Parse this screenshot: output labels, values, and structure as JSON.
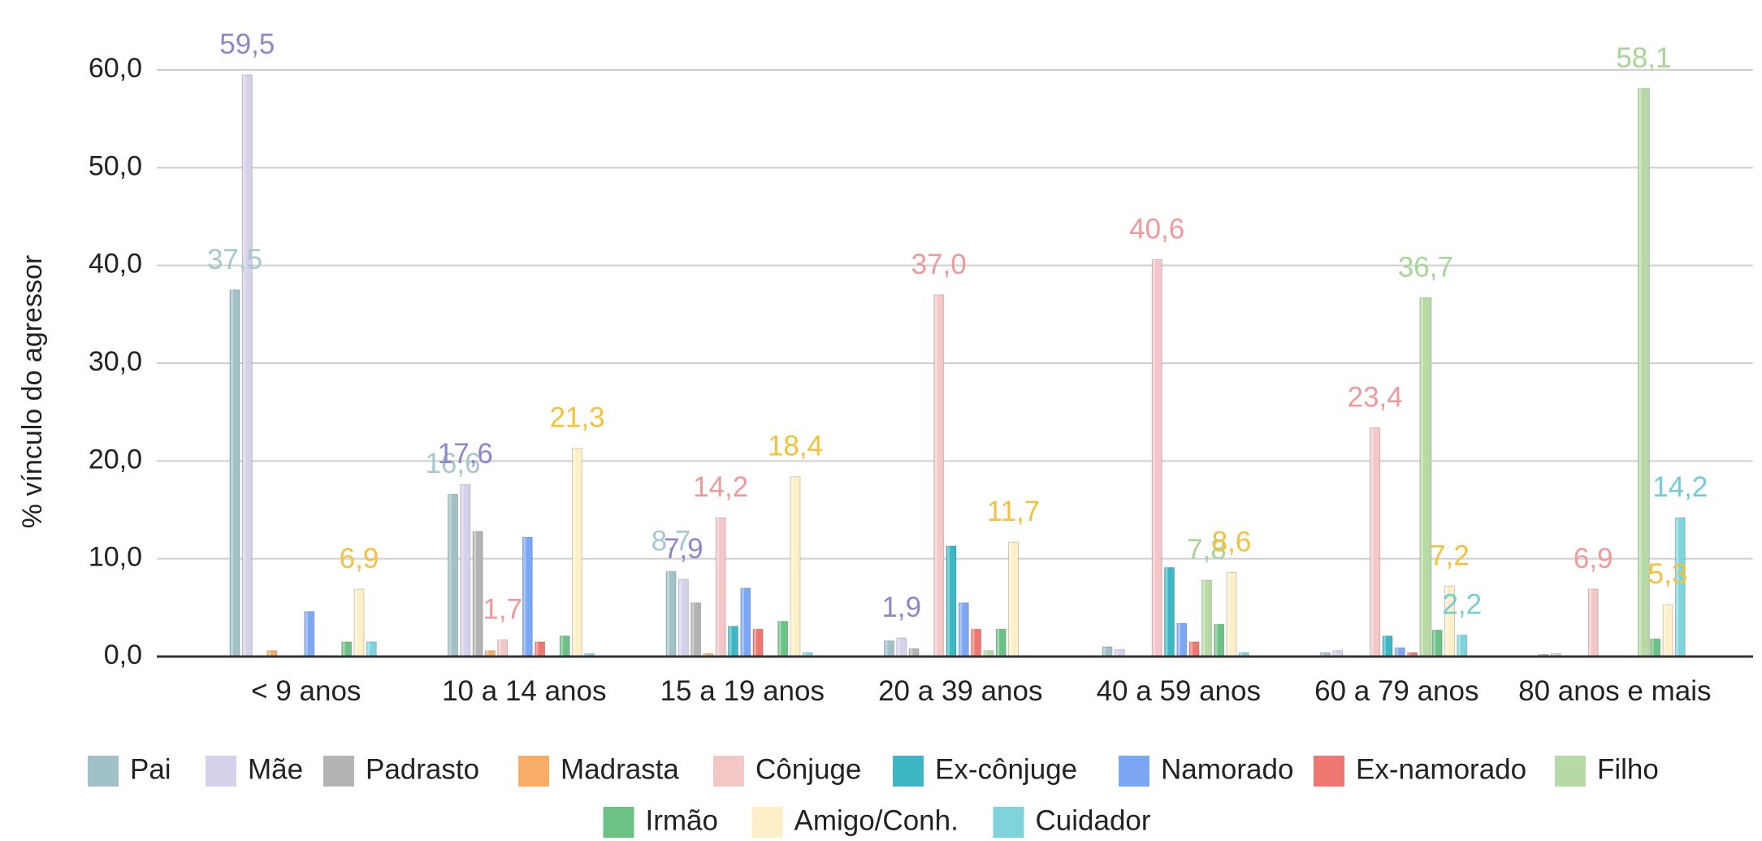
{
  "chart_data": {
    "type": "bar",
    "title": "",
    "xlabel": "",
    "ylabel": "% vínculo do agressor",
    "ylim": [
      0,
      60
    ],
    "yticks": [
      "0,0",
      "10,0",
      "20,0",
      "30,0",
      "40,0",
      "50,0",
      "60,0"
    ],
    "grid": true,
    "legend_position": "bottom",
    "categories": [
      "< 9 anos",
      "10 a 14 anos",
      "15 a 19 anos",
      "20 a 39 anos",
      "40 a 59 anos",
      "60 a 79 anos",
      "80 anos e mais"
    ],
    "series": [
      {
        "name": "Pai",
        "color": "#9fc1c7",
        "label_color": "#a6c8cc",
        "values": [
          37.5,
          16.6,
          8.7,
          1.6,
          1.0,
          0.4,
          0.2
        ],
        "labels": [
          "37,5",
          "16,6",
          "8,7",
          null,
          null,
          null,
          null
        ]
      },
      {
        "name": "Mãe",
        "color": "#d7d0ea",
        "label_color": "#8e86cb",
        "values": [
          59.5,
          17.6,
          7.9,
          1.9,
          0.7,
          0.6,
          0.3
        ],
        "labels": [
          "59,5",
          "17,6",
          "7,9",
          "1,9",
          null,
          null,
          null
        ]
      },
      {
        "name": "Padrasto",
        "color": "#b3b3b3",
        "label_color": "#999999",
        "values": [
          0.0,
          12.8,
          5.5,
          0.8,
          0.1,
          0.1,
          0.0
        ],
        "labels": [
          null,
          null,
          null,
          null,
          null,
          null,
          null
        ]
      },
      {
        "name": "Madrasta",
        "color": "#f7ad66",
        "label_color": "#f7ad66",
        "values": [
          0.6,
          0.6,
          0.3,
          0.1,
          0.0,
          0.0,
          0.0
        ],
        "labels": [
          null,
          null,
          null,
          null,
          null,
          null,
          null
        ]
      },
      {
        "name": "Cônjuge",
        "color": "#f4c7c7",
        "label_color": "#ef9a9a",
        "values": [
          0.0,
          1.7,
          14.2,
          37.0,
          40.6,
          23.4,
          6.9
        ],
        "labels": [
          null,
          "1,7",
          "14,2",
          "37,0",
          "40,6",
          "23,4",
          "6,9"
        ]
      },
      {
        "name": "Ex-cônjuge",
        "color": "#3db7c4",
        "label_color": "#3db7c4",
        "values": [
          0.0,
          0.0,
          3.1,
          11.3,
          9.1,
          2.1,
          0.1
        ],
        "labels": [
          null,
          null,
          null,
          null,
          null,
          null,
          null
        ]
      },
      {
        "name": "Namorado",
        "color": "#7ba7f5",
        "label_color": "#7ba7f5",
        "values": [
          4.6,
          12.2,
          7.0,
          5.5,
          3.4,
          0.9,
          0.1
        ],
        "labels": [
          null,
          null,
          null,
          null,
          null,
          null,
          null
        ]
      },
      {
        "name": "Ex-namorado",
        "color": "#ee7771",
        "label_color": "#ee7771",
        "values": [
          0.0,
          1.5,
          2.8,
          2.8,
          1.5,
          0.4,
          0.0
        ],
        "labels": [
          null,
          null,
          null,
          null,
          null,
          null,
          null
        ]
      },
      {
        "name": "Filho",
        "color": "#b7d9a5",
        "label_color": "#a9d497",
        "values": [
          0.0,
          0.0,
          0.0,
          0.6,
          7.8,
          36.7,
          58.1
        ],
        "labels": [
          null,
          null,
          null,
          null,
          "7,8",
          "36,7",
          "58,1"
        ]
      },
      {
        "name": "Irmão",
        "color": "#6cc184",
        "label_color": "#6cc184",
        "values": [
          1.5,
          2.1,
          3.6,
          2.8,
          3.3,
          2.7,
          1.8
        ],
        "labels": [
          null,
          null,
          null,
          null,
          null,
          null,
          null
        ]
      },
      {
        "name": "Amigo/Conh.",
        "color": "#fdf0c8",
        "label_color": "#f2c23d",
        "values": [
          6.9,
          21.3,
          18.4,
          11.7,
          8.6,
          7.2,
          5.3
        ],
        "labels": [
          "6,9",
          "21,3",
          "18,4",
          "11,7",
          "8,6",
          "7,2",
          "5,3"
        ]
      },
      {
        "name": "Cuidador",
        "color": "#7fd3dc",
        "label_color": "#72ccd6",
        "values": [
          1.5,
          0.3,
          0.4,
          0.1,
          0.4,
          2.2,
          14.2
        ],
        "labels": [
          null,
          null,
          null,
          null,
          null,
          "2,2",
          "14,2"
        ]
      }
    ]
  }
}
